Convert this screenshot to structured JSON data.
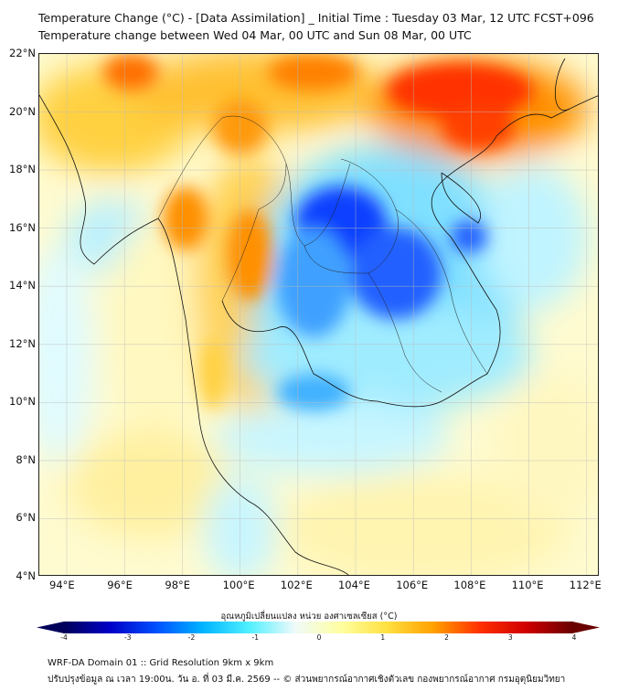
{
  "title": {
    "line1": "Temperature Change (°C) - [Data Assimilation] _ Initial Time : Tuesday 03 Mar, 12 UTC FCST+096",
    "line2": "Temperature change between Wed 04 Mar, 00 UTC and Sun 08 Mar, 00 UTC"
  },
  "map": {
    "lat_labels": [
      "22°N",
      "20°N",
      "18°N",
      "16°N",
      "14°N",
      "12°N",
      "10°N",
      "8°N",
      "6°N",
      "4°N"
    ],
    "lon_labels": [
      "94°E",
      "96°E",
      "98°E",
      "100°E",
      "102°E",
      "104°E",
      "106°E",
      "108°E",
      "110°E",
      "112°E"
    ],
    "lat_values": [
      22,
      20,
      18,
      16,
      14,
      12,
      10,
      8,
      6,
      4
    ],
    "lon_values": [
      94,
      96,
      98,
      100,
      102,
      104,
      106,
      108,
      110,
      112
    ],
    "extent": {
      "lon": [
        93.05,
        112.45
      ],
      "lat": [
        4,
        22
      ]
    }
  },
  "colorbar": {
    "label": "อุณหภูมิเปลี่ยนแปลง หน่วย องศาเซลเซียส (°C)",
    "ticks": [
      "-4",
      "-3",
      "-2",
      "-1",
      "0",
      "1",
      "2",
      "3",
      "4"
    ],
    "range": [
      -4,
      4
    ],
    "colors": [
      "#00005a",
      "#0000c8",
      "#0050ff",
      "#00b4ff",
      "#50f0ff",
      "#f0fafa",
      "#ffffa0",
      "#ffe040",
      "#ffa000",
      "#ff3000",
      "#d00000",
      "#6a0000"
    ]
  },
  "footer": {
    "line1": "WRF-DA Domain 01 :: Grid Resolution 9km x 9km",
    "line2": "ปรับปรุงข้อมูล ณ เวลา 19:00น. วัน อ. ที่ 03 มี.ค. 2569 -- © ส่วนพยากรณ์อากาศเชิงตัวเลข กองพยากรณ์อากาศ กรมอุตุนิยมวิทยา"
  }
}
